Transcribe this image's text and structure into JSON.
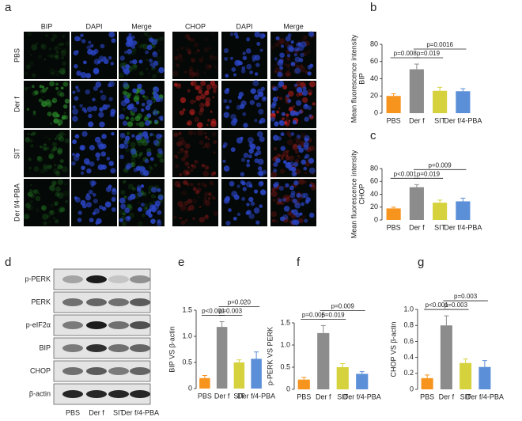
{
  "figure": {
    "panel_a": "a",
    "panel_d": "d",
    "image_columns": [
      "BIP",
      "DAPI",
      "Merge",
      "CHOP",
      "DAPI",
      "Merge"
    ],
    "image_rows": [
      "PBS",
      "Der f",
      "SIT",
      "Der f/4-PBA"
    ],
    "blot_rows": [
      "p-PERK",
      "PERK",
      "p-eIF2α",
      "BIP",
      "CHOP",
      "β-actin"
    ],
    "blot_lanes": [
      "PBS",
      "Der f",
      "SIT",
      "Der f/4-PBA"
    ]
  },
  "chart_data": [
    {
      "type": "bar",
      "panel": "b",
      "ylabel": [
        "Mean fluorescence intensity",
        "BIP"
      ],
      "categories": [
        "PBS",
        "Der f",
        "SIT",
        "Der f/4-PBA"
      ],
      "values": [
        20,
        51,
        26,
        25.5
      ],
      "errors": [
        2.5,
        6,
        4,
        3
      ],
      "colors": [
        "#f7941d",
        "#8c8c8c",
        "#d6d23e",
        "#5b8fd8"
      ],
      "ylim": [
        0,
        80
      ],
      "yticks": [
        0,
        20,
        40,
        60,
        80
      ],
      "annotations": [
        "p=0.008",
        "p=0.019",
        "p=0.0016"
      ]
    },
    {
      "type": "bar",
      "panel": "c",
      "ylabel": [
        "Mean fluorescence intensity",
        "CHOP"
      ],
      "categories": [
        "PBS",
        "Der f",
        "SIT",
        "Der f/4-PBA"
      ],
      "values": [
        18,
        51,
        27,
        29
      ],
      "errors": [
        2,
        4,
        4,
        5
      ],
      "colors": [
        "#f7941d",
        "#8c8c8c",
        "#d6d23e",
        "#5b8fd8"
      ],
      "ylim": [
        0,
        80
      ],
      "yticks": [
        0,
        20,
        40,
        60,
        80
      ],
      "annotations": [
        "p<0.001",
        "p=0.019",
        "p=0.009"
      ]
    },
    {
      "type": "bar",
      "panel": "e",
      "ylabel": [
        "BIP VS β-actin"
      ],
      "categories": [
        "PBS",
        "Der f",
        "SIT",
        "Der f/4-PBA"
      ],
      "values": [
        0.2,
        1.18,
        0.5,
        0.57
      ],
      "errors": [
        0.05,
        0.1,
        0.05,
        0.13
      ],
      "colors": [
        "#f7941d",
        "#8c8c8c",
        "#d6d23e",
        "#5b8fd8"
      ],
      "ylim": [
        0,
        1.5
      ],
      "yticks": [
        0,
        0.5,
        {
          "value": 1,
          "label": "1.0"
        },
        1.5
      ],
      "annotations": [
        "p<0.001",
        "p=0.003",
        "p=0.020"
      ]
    },
    {
      "type": "bar",
      "panel": "f",
      "ylabel": [
        "p-PERK VS PERK"
      ],
      "categories": [
        "PBS",
        "Der f",
        "SIT",
        "Der f/4-PBA"
      ],
      "values": [
        0.22,
        1.27,
        0.5,
        0.35
      ],
      "errors": [
        0.05,
        0.17,
        0.08,
        0.05
      ],
      "colors": [
        "#f7941d",
        "#8c8c8c",
        "#d6d23e",
        "#5b8fd8"
      ],
      "ylim": [
        0,
        1.5
      ],
      "yticks": [
        0,
        0.5,
        {
          "value": 1,
          "label": "1.0"
        },
        1.5
      ],
      "annotations": [
        "p=0.005",
        "p=0.019",
        "p=0.009"
      ]
    },
    {
      "type": "bar",
      "panel": "g",
      "ylabel": [
        "CHOP VS β-actin"
      ],
      "categories": [
        "PBS",
        "Der f",
        "SIT",
        "Der f/4-PBA"
      ],
      "values": [
        0.14,
        0.8,
        0.33,
        0.28
      ],
      "errors": [
        0.04,
        0.12,
        0.05,
        0.08
      ],
      "colors": [
        "#f7941d",
        "#8c8c8c",
        "#d6d23e",
        "#5b8fd8"
      ],
      "ylim": [
        0,
        1
      ],
      "yticks": [
        0,
        0.2,
        0.4,
        0.6,
        0.8,
        {
          "value": 1,
          "label": "1.0"
        }
      ],
      "annotations": [
        "p<0.001",
        "p=0.003",
        "p=0.003"
      ]
    }
  ]
}
